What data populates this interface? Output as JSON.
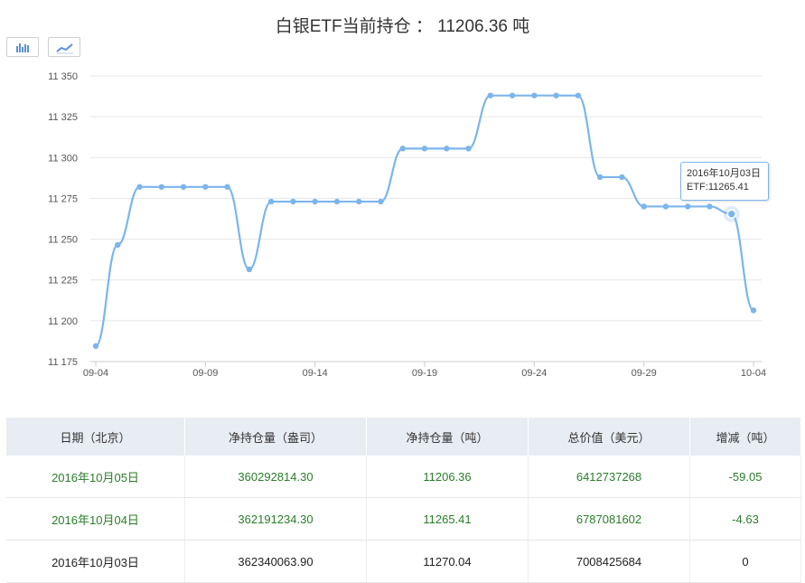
{
  "page_title": "白银ETF当前持仓 ： 11206.36 吨",
  "toolbar": {
    "bar_icon": "bar-chart-icon",
    "line_icon": "line-chart-icon"
  },
  "tooltip": {
    "date": "2016年10月03日",
    "value_text": "ETF:11265.41"
  },
  "chart_data": {
    "type": "line",
    "x": [
      "2016-09-04",
      "2016-09-05",
      "2016-09-06",
      "2016-09-07",
      "2016-09-08",
      "2016-09-09",
      "2016-09-10",
      "2016-09-11",
      "2016-09-12",
      "2016-09-13",
      "2016-09-14",
      "2016-09-15",
      "2016-09-16",
      "2016-09-17",
      "2016-09-18",
      "2016-09-19",
      "2016-09-20",
      "2016-09-21",
      "2016-09-22",
      "2016-09-23",
      "2016-09-24",
      "2016-09-25",
      "2016-09-26",
      "2016-09-27",
      "2016-09-28",
      "2016-09-29",
      "2016-09-30",
      "2016-10-01",
      "2016-10-02",
      "2016-10-03",
      "2016-10-04"
    ],
    "values": [
      11184.5,
      11246.5,
      11282,
      11282,
      11282,
      11282,
      11282,
      11231.5,
      11273,
      11273,
      11273,
      11273,
      11273,
      11273,
      11305.5,
      11305.5,
      11305.5,
      11305.5,
      11338,
      11338,
      11338,
      11338,
      11338,
      11288,
      11288,
      11270,
      11270,
      11270,
      11270,
      11265.41,
      11206.36
    ],
    "x_ticks": [
      "09-04",
      "09-09",
      "09-14",
      "09-19",
      "09-24",
      "09-29",
      "10-04"
    ],
    "y_ticks": [
      "11 175",
      "11 200",
      "11 225",
      "11 250",
      "11 275",
      "11 300",
      "11 325",
      "11 350"
    ],
    "ylim": [
      11175,
      11350
    ],
    "highlight_index": 29,
    "colors": {
      "line": "#7cb5ec",
      "grid": "#e6e6e6"
    },
    "grid": true
  },
  "table": {
    "headers": [
      "日期（北京）",
      "净持仓量（盎司）",
      "净持仓量（吨）",
      "总价值（美元）",
      "增减（吨）"
    ],
    "rows": [
      [
        "2016年10月05日",
        "360292814.30",
        "11206.36",
        "6412737268",
        "-59.05"
      ],
      [
        "2016年10月04日",
        "362191234.30",
        "11265.41",
        "6787081602",
        "-4.63"
      ],
      [
        "2016年10月03日",
        "362340063.90",
        "11270.04",
        "7008425684",
        "0"
      ]
    ]
  }
}
